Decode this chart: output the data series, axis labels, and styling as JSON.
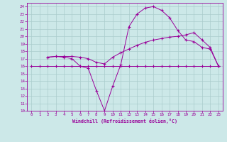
{
  "bg_color": "#cce8e8",
  "line_color": "#990099",
  "grid_color": "#aacccc",
  "xlabel": "Windchill (Refroidissement éolien,°C)",
  "xlabel_color": "#990099",
  "xtick_color": "#990099",
  "ytick_color": "#990099",
  "xlim": [
    -0.5,
    23.5
  ],
  "ylim": [
    10,
    24.5
  ],
  "xticks": [
    0,
    1,
    2,
    3,
    4,
    5,
    6,
    7,
    8,
    9,
    10,
    11,
    12,
    13,
    14,
    15,
    16,
    17,
    18,
    19,
    20,
    21,
    22,
    23
  ],
  "yticks": [
    10,
    11,
    12,
    13,
    14,
    15,
    16,
    17,
    18,
    19,
    20,
    21,
    22,
    23,
    24
  ],
  "line1_x": [
    0,
    1,
    2,
    3,
    4,
    5,
    6,
    7,
    8,
    9,
    10,
    11,
    12,
    13,
    14,
    15,
    16,
    17,
    18,
    19,
    20,
    21,
    22,
    23
  ],
  "line1_y": [
    16,
    16,
    16,
    16,
    16,
    16,
    16,
    16,
    16,
    16,
    16,
    16,
    16,
    16,
    16,
    16,
    16,
    16,
    16,
    16,
    16,
    16,
    16,
    16
  ],
  "line2_x": [
    2,
    3,
    4,
    5,
    6,
    7,
    8,
    9,
    10,
    11,
    12,
    13,
    14,
    15,
    16,
    17,
    18,
    19,
    20,
    21,
    22,
    23
  ],
  "line2_y": [
    17.2,
    17.3,
    17.3,
    17.3,
    17.2,
    17.0,
    16.5,
    16.3,
    17.2,
    17.8,
    18.3,
    18.8,
    19.2,
    19.5,
    19.7,
    19.9,
    20.0,
    20.2,
    20.5,
    19.5,
    18.5,
    16.0
  ],
  "line3_x": [
    2,
    3,
    4,
    5,
    6,
    7,
    8,
    9,
    10,
    11,
    12,
    13,
    14,
    15,
    16,
    17,
    18,
    19,
    20,
    21,
    22,
    23
  ],
  "line3_y": [
    17.2,
    17.3,
    17.2,
    17.0,
    16.0,
    15.7,
    12.7,
    10.0,
    13.3,
    16.2,
    21.3,
    23.0,
    23.8,
    24.0,
    23.5,
    22.5,
    20.8,
    19.5,
    19.3,
    18.5,
    18.3,
    16.0
  ]
}
